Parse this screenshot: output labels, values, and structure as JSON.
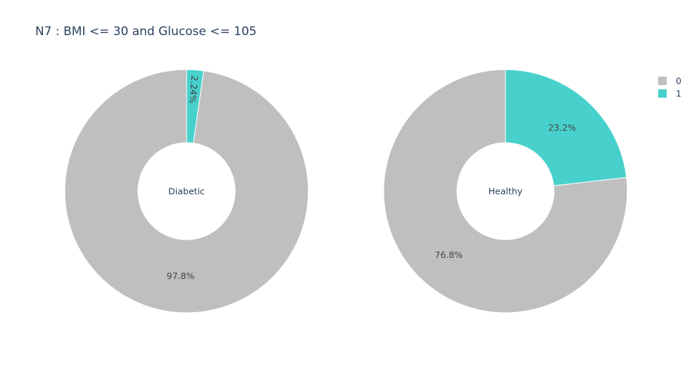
{
  "chart_data": {
    "type": "pie",
    "title": "N7 : BMI <= 30 and Glucose <= 105",
    "hole": true,
    "legend_position": "top-right",
    "categories": [
      "0",
      "1"
    ],
    "colors": {
      "0": "#bfbfbf",
      "1": "#48d1cc"
    },
    "legend": [
      {
        "label": "0",
        "color": "#bfbfbf"
      },
      {
        "label": "1",
        "color": "#48d1cc"
      }
    ],
    "pies": [
      {
        "center_label": "Diabetic",
        "slices": [
          {
            "category": "0",
            "value": 97.8,
            "label": "97.8%"
          },
          {
            "category": "1",
            "value": 2.24,
            "label": "2.24%"
          }
        ]
      },
      {
        "center_label": "Healthy",
        "slices": [
          {
            "category": "0",
            "value": 76.8,
            "label": "76.8%"
          },
          {
            "category": "1",
            "value": 23.2,
            "label": "23.2%"
          }
        ]
      }
    ]
  }
}
